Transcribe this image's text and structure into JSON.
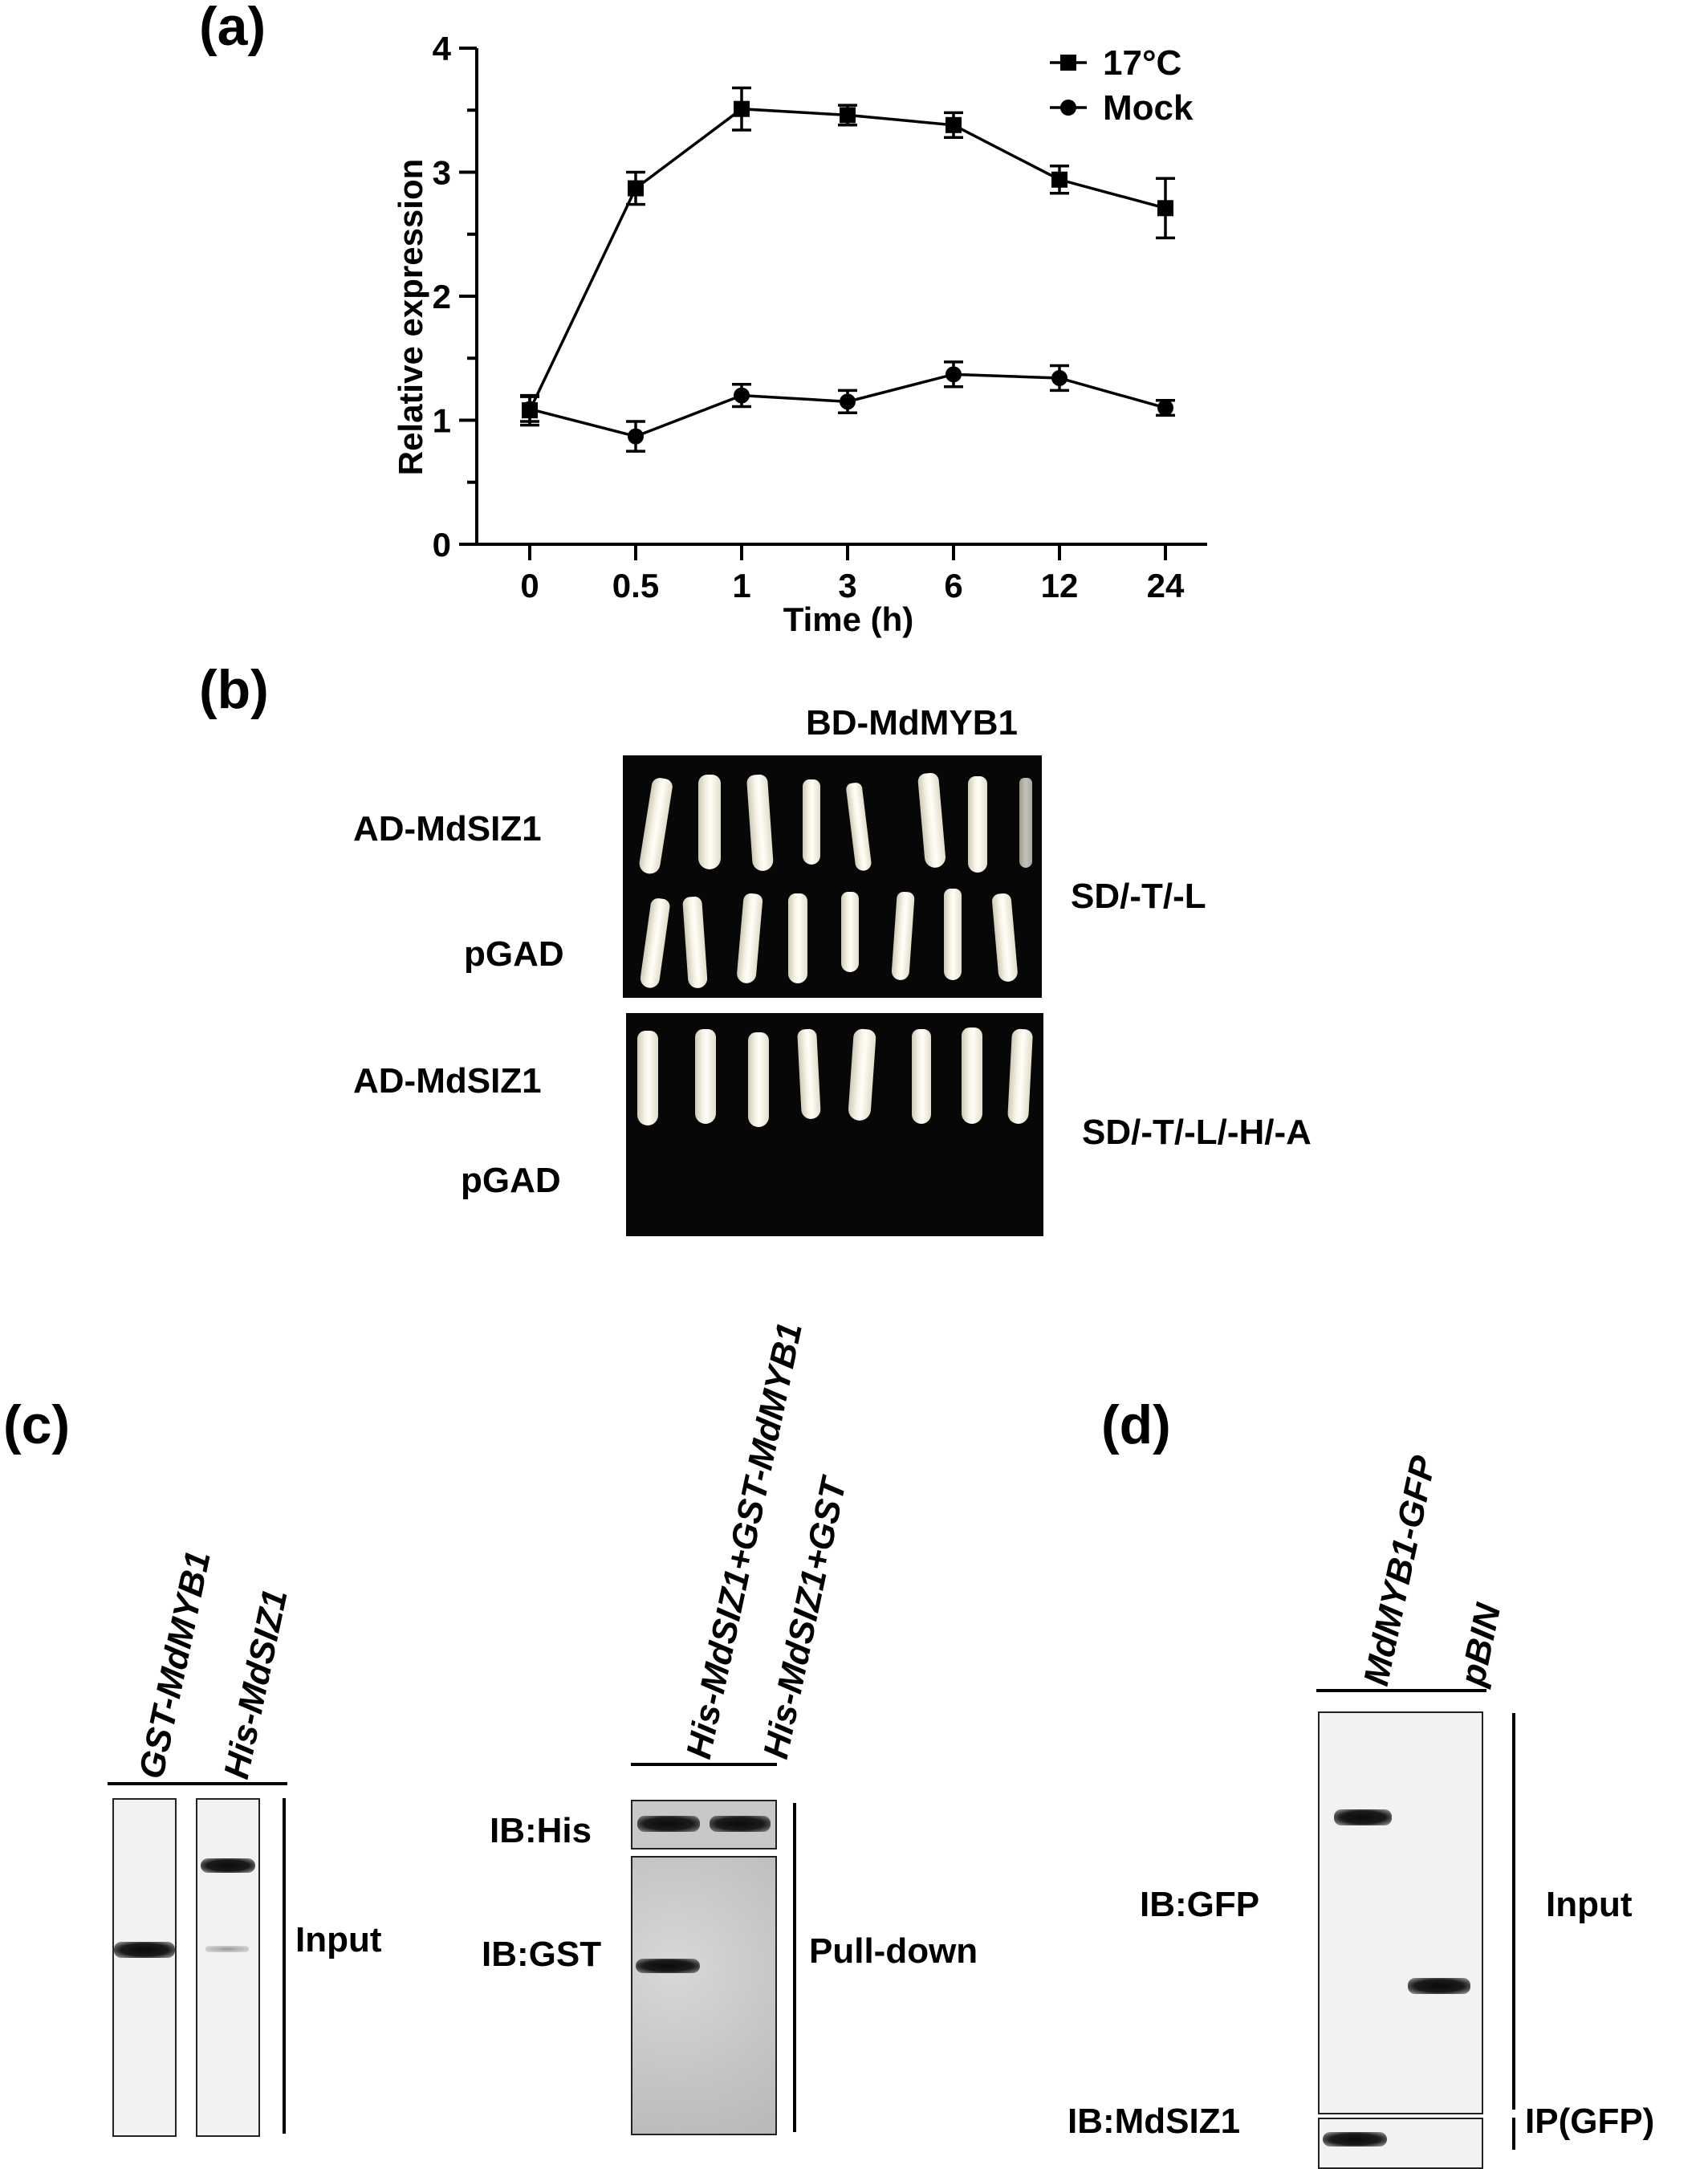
{
  "panel_a": {
    "label": "(a)",
    "chart_data": {
      "type": "line",
      "x": [
        "0",
        "0.5",
        "1",
        "3",
        "6",
        "12",
        "24"
      ],
      "xlabel": "Time (h)",
      "ylabel": "Relative expression",
      "ylim": [
        0,
        4
      ],
      "yticks": [
        "0",
        "1",
        "2",
        "3",
        "4"
      ],
      "legend_position": "top-right",
      "series": [
        {
          "name": "17°C",
          "marker": "square",
          "values": [
            1.08,
            2.87,
            3.51,
            3.46,
            3.38,
            2.94,
            2.71
          ],
          "errors": [
            0.12,
            0.13,
            0.17,
            0.08,
            0.1,
            0.11,
            0.24
          ]
        },
        {
          "name": "Mock",
          "marker": "circle",
          "values": [
            1.09,
            0.87,
            1.2,
            1.15,
            1.37,
            1.34,
            1.1
          ],
          "errors": [
            0.1,
            0.12,
            0.09,
            0.09,
            0.1,
            0.1,
            0.06
          ]
        }
      ]
    }
  },
  "panel_b": {
    "label": "(b)",
    "column_header": "BD-MdMYB1",
    "row_labels": [
      "AD-MdSIZ1",
      "pGAD",
      "AD-MdSIZ1",
      "pGAD"
    ],
    "media_labels": [
      "SD/-T/-L",
      "SD/-T/-L/-H/-A"
    ]
  },
  "panel_c": {
    "label": "(c)",
    "input_lanes": [
      "GST-MdMYB1",
      "His-MdSIZ1"
    ],
    "input_label": "Input",
    "pulldown_lanes": [
      "His-MdSIZ1+GST-MdMYB1",
      "His-MdSIZ1+GST"
    ],
    "blot_labels": [
      "IB:His",
      "IB:GST"
    ],
    "pulldown_label": "Pull-down"
  },
  "panel_d": {
    "label": "(d)",
    "lanes": [
      "MdMYB1-GFP",
      "pBIN"
    ],
    "blot_labels": [
      "IB:GFP",
      "IB:MdSIZ1"
    ],
    "section_labels": [
      "Input",
      "IP(GFP)"
    ]
  }
}
